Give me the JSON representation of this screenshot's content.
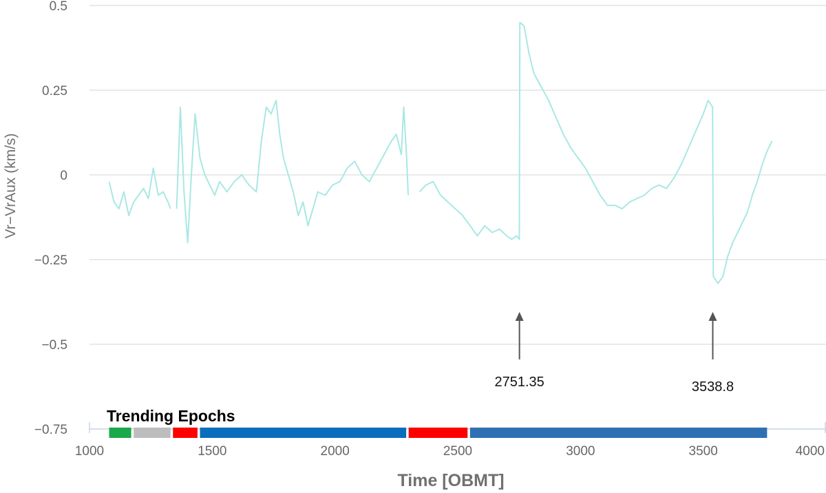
{
  "chart_data": {
    "type": "line",
    "xlabel": "Time [OBMT]",
    "ylabel": "Vr−VrAux (km/s)",
    "xlim": [
      1000,
      4000
    ],
    "ylim": [
      -0.75,
      0.5
    ],
    "x_ticks": [
      "1000",
      "1500",
      "2000",
      "2500",
      "3000",
      "3500",
      "4000"
    ],
    "y_ticks": [
      {
        "value": 0.5,
        "label": "0.5"
      },
      {
        "value": 0.25,
        "label": "0.25"
      },
      {
        "value": 0,
        "label": "0"
      },
      {
        "value": -0.25,
        "label": "−0.25"
      },
      {
        "value": -0.5,
        "label": "−0.5"
      },
      {
        "value": -0.75,
        "label": "−0.75"
      }
    ],
    "grid": true,
    "line_color": "#a8e8e4",
    "series": [
      {
        "segments": [
          [
            [
              1080,
              -0.02
            ],
            [
              1100,
              -0.08
            ],
            [
              1120,
              -0.1
            ],
            [
              1140,
              -0.05
            ],
            [
              1160,
              -0.12
            ],
            [
              1180,
              -0.08
            ],
            [
              1200,
              -0.06
            ],
            [
              1220,
              -0.04
            ],
            [
              1240,
              -0.07
            ],
            [
              1260,
              0.02
            ],
            [
              1280,
              -0.06
            ],
            [
              1300,
              -0.05
            ],
            [
              1320,
              -0.08
            ],
            [
              1330,
              -0.1
            ]
          ],
          [
            [
              1355,
              -0.1
            ],
            [
              1370,
              0.2
            ],
            [
              1385,
              -0.05
            ],
            [
              1400,
              -0.2
            ],
            [
              1415,
              0.0
            ],
            [
              1430,
              0.18
            ],
            [
              1450,
              0.05
            ],
            [
              1470,
              0.0
            ],
            [
              1490,
              -0.03
            ],
            [
              1510,
              -0.06
            ],
            [
              1530,
              -0.02
            ],
            [
              1560,
              -0.05
            ],
            [
              1590,
              -0.02
            ],
            [
              1620,
              0.0
            ],
            [
              1650,
              -0.03
            ],
            [
              1680,
              -0.05
            ],
            [
              1700,
              0.1
            ],
            [
              1720,
              0.2
            ],
            [
              1740,
              0.18
            ],
            [
              1760,
              0.22
            ],
            [
              1775,
              0.12
            ],
            [
              1790,
              0.05
            ],
            [
              1810,
              0.0
            ],
            [
              1830,
              -0.05
            ],
            [
              1850,
              -0.12
            ],
            [
              1870,
              -0.08
            ],
            [
              1890,
              -0.15
            ],
            [
              1910,
              -0.1
            ],
            [
              1930,
              -0.05
            ],
            [
              1960,
              -0.06
            ],
            [
              1990,
              -0.03
            ],
            [
              2020,
              -0.02
            ],
            [
              2050,
              0.02
            ],
            [
              2080,
              0.04
            ],
            [
              2110,
              0.0
            ],
            [
              2140,
              -0.02
            ],
            [
              2170,
              0.02
            ],
            [
              2200,
              0.06
            ],
            [
              2230,
              0.1
            ],
            [
              2250,
              0.12
            ],
            [
              2270,
              0.06
            ],
            [
              2280,
              0.2
            ],
            [
              2292,
              0.05
            ],
            [
              2298,
              -0.06
            ]
          ],
          [
            [
              2345,
              -0.05
            ],
            [
              2370,
              -0.03
            ],
            [
              2400,
              -0.02
            ],
            [
              2430,
              -0.06
            ],
            [
              2460,
              -0.08
            ],
            [
              2490,
              -0.1
            ],
            [
              2520,
              -0.12
            ],
            [
              2550,
              -0.15
            ],
            [
              2580,
              -0.18
            ],
            [
              2610,
              -0.15
            ],
            [
              2640,
              -0.17
            ],
            [
              2670,
              -0.16
            ],
            [
              2700,
              -0.18
            ],
            [
              2720,
              -0.19
            ],
            [
              2740,
              -0.18
            ],
            [
              2751,
              -0.19
            ],
            [
              2753,
              0.45
            ],
            [
              2770,
              0.44
            ],
            [
              2790,
              0.36
            ],
            [
              2810,
              0.3
            ],
            [
              2840,
              0.26
            ],
            [
              2870,
              0.22
            ],
            [
              2900,
              0.17
            ],
            [
              2930,
              0.12
            ],
            [
              2960,
              0.08
            ],
            [
              2990,
              0.05
            ],
            [
              3020,
              0.02
            ],
            [
              3050,
              -0.02
            ],
            [
              3080,
              -0.06
            ],
            [
              3110,
              -0.09
            ],
            [
              3140,
              -0.09
            ],
            [
              3170,
              -0.1
            ],
            [
              3200,
              -0.08
            ],
            [
              3230,
              -0.07
            ],
            [
              3260,
              -0.06
            ],
            [
              3290,
              -0.04
            ],
            [
              3320,
              -0.03
            ],
            [
              3350,
              -0.04
            ],
            [
              3380,
              -0.01
            ],
            [
              3410,
              0.03
            ],
            [
              3440,
              0.08
            ],
            [
              3470,
              0.13
            ],
            [
              3500,
              0.18
            ],
            [
              3520,
              0.22
            ],
            [
              3538,
              0.2
            ],
            [
              3541,
              -0.3
            ],
            [
              3560,
              -0.32
            ],
            [
              3580,
              -0.3
            ],
            [
              3600,
              -0.24
            ],
            [
              3620,
              -0.2
            ],
            [
              3640,
              -0.17
            ],
            [
              3660,
              -0.14
            ],
            [
              3680,
              -0.11
            ],
            [
              3700,
              -0.06
            ],
            [
              3720,
              -0.02
            ],
            [
              3740,
              0.03
            ],
            [
              3760,
              0.07
            ],
            [
              3780,
              0.1
            ]
          ]
        ]
      }
    ],
    "annotations": [
      {
        "x": 2751.35,
        "label": "2751.35"
      },
      {
        "x": 3538.8,
        "label": "3538.8"
      }
    ],
    "epochs": {
      "title": "Trending Epochs",
      "bands": [
        {
          "start": 1080,
          "end": 1170,
          "color": "#1aaa4a"
        },
        {
          "start": 1180,
          "end": 1330,
          "color": "#bdbdbd"
        },
        {
          "start": 1340,
          "end": 1440,
          "color": "#ff0000"
        },
        {
          "start": 1450,
          "end": 2290,
          "color": "#0a6ebd"
        },
        {
          "start": 2300,
          "end": 2540,
          "color": "#ff0000"
        },
        {
          "start": 2550,
          "end": 3760,
          "color": "#2f70b3"
        }
      ]
    }
  }
}
